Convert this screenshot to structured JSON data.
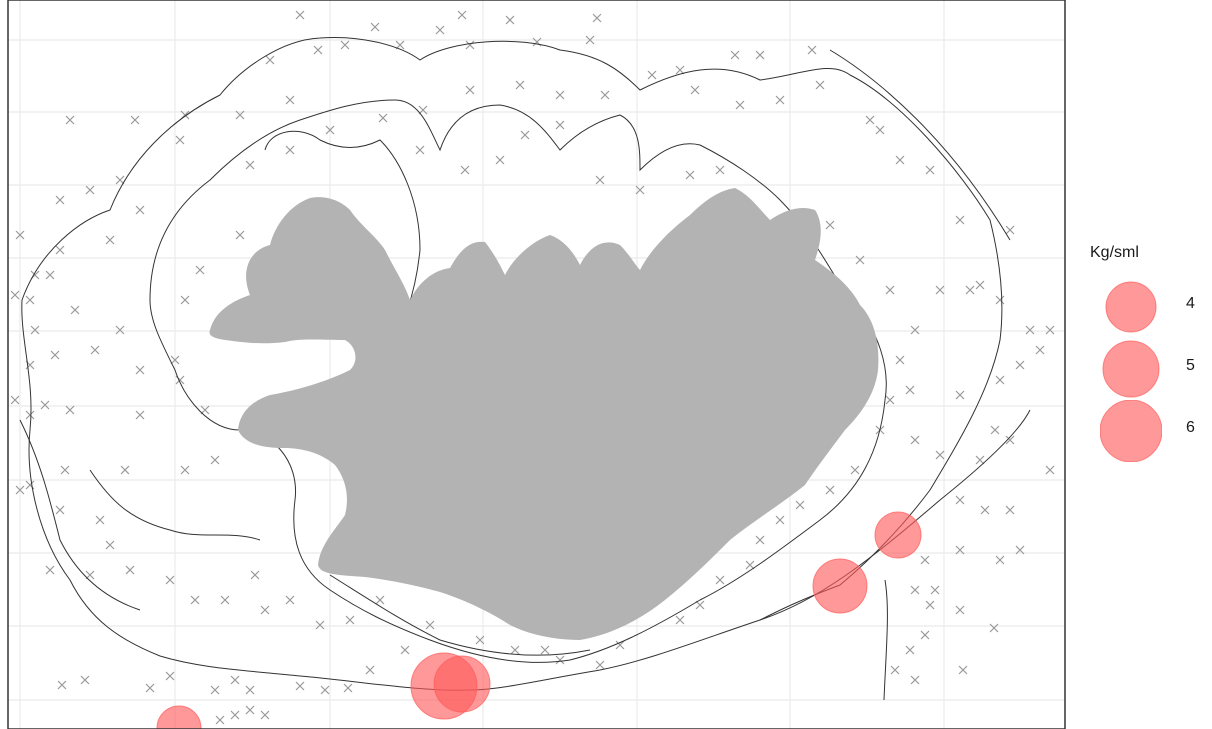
{
  "map": {
    "land_color": "#b3b3b3",
    "grid_color": "#ebebeb",
    "contour_color": "#333333",
    "station_marker_color": "#999999",
    "bubble_color": "#ff5a5a"
  },
  "legend": {
    "title": "Kg/sml",
    "entries": [
      {
        "label": "4",
        "value": 4
      },
      {
        "label": "5",
        "value": 5
      },
      {
        "label": "6",
        "value": 6
      }
    ]
  }
}
